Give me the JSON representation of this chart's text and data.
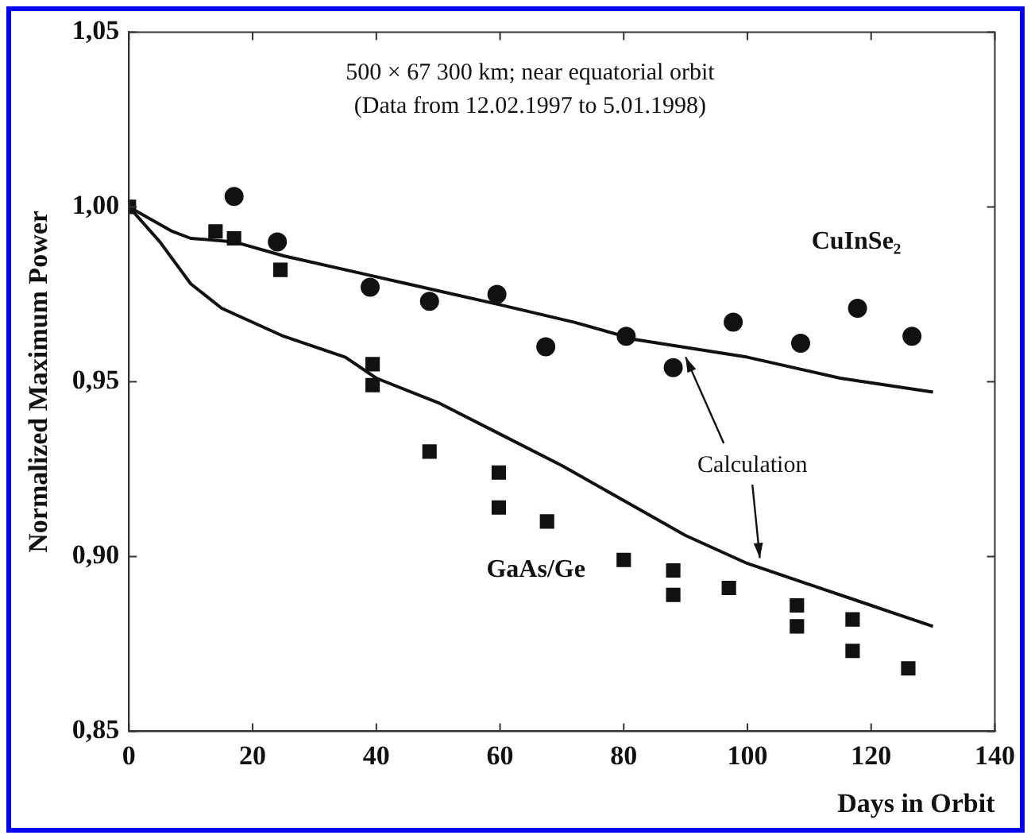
{
  "chart_data": {
    "type": "scatter",
    "xlabel": "Days in Orbit",
    "ylabel": "Normalized Maximum Power",
    "xlim": [
      0,
      140
    ],
    "xticks": [
      0,
      20,
      40,
      60,
      80,
      100,
      120,
      140
    ],
    "ylim": [
      0.85,
      1.05
    ],
    "yticks": [
      {
        "value": 0.85,
        "label": "0,85"
      },
      {
        "value": 0.9,
        "label": "0,90"
      },
      {
        "value": 0.95,
        "label": "0,95"
      },
      {
        "value": 1.0,
        "label": "1,00"
      },
      {
        "value": 1.05,
        "label": "1,05"
      }
    ],
    "grid": false,
    "legend": false,
    "series": [
      {
        "type": "scatter",
        "name": "CuInSe₂",
        "marker": "circle",
        "color": "#111111",
        "x": [
          17,
          24,
          39,
          48.6,
          59.5,
          67.4,
          80.4,
          88,
          97.7,
          108.6,
          117.8,
          126.6
        ],
        "values": [
          1.003,
          0.99,
          0.977,
          0.973,
          0.975,
          0.96,
          0.963,
          0.954,
          0.967,
          0.961,
          0.971,
          0.963
        ]
      },
      {
        "type": "scatter",
        "name": "GaAs/Ge",
        "marker": "square",
        "color": "#111111",
        "x": [
          0,
          14,
          17,
          24.5,
          39.4,
          39.4,
          48.6,
          59.8,
          59.8,
          67.6,
          80,
          88,
          88,
          97,
          108,
          108,
          117,
          117,
          126
        ],
        "values": [
          1.0,
          0.993,
          0.991,
          0.982,
          0.955,
          0.949,
          0.93,
          0.924,
          0.914,
          0.91,
          0.899,
          0.896,
          0.889,
          0.891,
          0.886,
          0.88,
          0.882,
          0.873,
          0.868
        ]
      },
      {
        "type": "line",
        "marker": "none",
        "line_style": "solid",
        "color": "#111111",
        "x": [
          0,
          7,
          10,
          17,
          25,
          40,
          50,
          60,
          72,
          82,
          100,
          115,
          130
        ],
        "values": [
          1.0,
          0.993,
          0.991,
          0.99,
          0.986,
          0.98,
          0.976,
          0.972,
          0.967,
          0.962,
          0.957,
          0.951,
          0.947
        ]
      },
      {
        "type": "line",
        "marker": "none",
        "line_style": "solid",
        "color": "#111111",
        "x": [
          0,
          5,
          10,
          15,
          25,
          35,
          40,
          50,
          60,
          70,
          80,
          90,
          100,
          110,
          120,
          130
        ],
        "values": [
          1.0,
          0.99,
          0.978,
          0.971,
          0.963,
          0.957,
          0.951,
          0.944,
          0.935,
          0.926,
          0.916,
          0.906,
          0.898,
          0.892,
          0.886,
          0.88
        ]
      }
    ],
    "annotations": [
      "500 × 67 300 km; near equatorial orbit",
      "(Data from 12.02.1997 to 5.01.1998)",
      "Calculation"
    ]
  }
}
